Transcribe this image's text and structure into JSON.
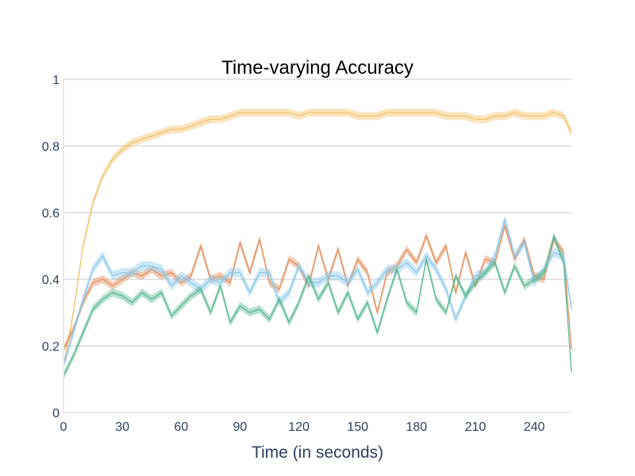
{
  "chart_data": {
    "type": "line",
    "title": "Time-varying Accuracy",
    "xlabel": "Time (in seconds)",
    "ylabel": "",
    "xlim": [
      0,
      259
    ],
    "ylim": [
      0,
      1
    ],
    "x_ticks": [
      0,
      30,
      60,
      90,
      120,
      150,
      180,
      210,
      240
    ],
    "x_tick_labels": [
      "0",
      "30",
      "60",
      "90",
      "120",
      "150",
      "180",
      "210",
      "240"
    ],
    "y_ticks": [
      0,
      0.2,
      0.4,
      0.6,
      0.8,
      1
    ],
    "y_tick_labels": [
      "0",
      "0.2",
      "0.4",
      "0.6",
      "0.8",
      "1"
    ],
    "grid": true,
    "legend": "none",
    "x": [
      0,
      5,
      10,
      15,
      20,
      25,
      30,
      35,
      40,
      45,
      50,
      55,
      60,
      65,
      70,
      75,
      80,
      85,
      90,
      95,
      100,
      105,
      110,
      115,
      120,
      125,
      130,
      135,
      140,
      145,
      150,
      155,
      160,
      165,
      170,
      175,
      180,
      185,
      190,
      195,
      200,
      205,
      210,
      215,
      220,
      225,
      230,
      235,
      240,
      245,
      250,
      255,
      259
    ],
    "series": [
      {
        "color": "#f2c46d",
        "band": 0.012,
        "values": [
          0.14,
          0.3,
          0.5,
          0.63,
          0.71,
          0.76,
          0.79,
          0.81,
          0.82,
          0.83,
          0.84,
          0.85,
          0.85,
          0.86,
          0.87,
          0.88,
          0.88,
          0.89,
          0.9,
          0.9,
          0.9,
          0.9,
          0.9,
          0.9,
          0.89,
          0.9,
          0.9,
          0.9,
          0.9,
          0.9,
          0.89,
          0.89,
          0.89,
          0.9,
          0.9,
          0.9,
          0.9,
          0.9,
          0.9,
          0.89,
          0.89,
          0.89,
          0.88,
          0.88,
          0.89,
          0.89,
          0.9,
          0.89,
          0.89,
          0.89,
          0.9,
          0.89,
          0.84
        ]
      },
      {
        "color": "#e2915f",
        "band": 0.012,
        "values": [
          0.19,
          0.25,
          0.33,
          0.39,
          0.4,
          0.38,
          0.4,
          0.42,
          0.41,
          0.43,
          0.41,
          0.42,
          0.39,
          0.41,
          0.5,
          0.4,
          0.41,
          0.39,
          0.51,
          0.42,
          0.52,
          0.39,
          0.37,
          0.46,
          0.44,
          0.38,
          0.5,
          0.4,
          0.49,
          0.38,
          0.46,
          0.42,
          0.3,
          0.42,
          0.44,
          0.49,
          0.45,
          0.53,
          0.45,
          0.5,
          0.36,
          0.48,
          0.38,
          0.46,
          0.45,
          0.56,
          0.46,
          0.52,
          0.41,
          0.4,
          0.52,
          0.48,
          0.19
        ]
      },
      {
        "color": "#8ec9ea",
        "band": 0.014,
        "values": [
          0.14,
          0.24,
          0.34,
          0.43,
          0.47,
          0.41,
          0.42,
          0.42,
          0.44,
          0.44,
          0.43,
          0.38,
          0.41,
          0.39,
          0.37,
          0.4,
          0.39,
          0.42,
          0.42,
          0.36,
          0.42,
          0.42,
          0.33,
          0.36,
          0.44,
          0.39,
          0.39,
          0.41,
          0.41,
          0.39,
          0.43,
          0.36,
          0.39,
          0.43,
          0.43,
          0.45,
          0.42,
          0.47,
          0.43,
          0.37,
          0.28,
          0.35,
          0.41,
          0.42,
          0.47,
          0.58,
          0.47,
          0.51,
          0.39,
          0.43,
          0.48,
          0.47,
          0.31
        ]
      },
      {
        "color": "#5ab891",
        "band": 0.012,
        "values": [
          0.11,
          0.17,
          0.24,
          0.31,
          0.34,
          0.36,
          0.35,
          0.33,
          0.36,
          0.34,
          0.36,
          0.29,
          0.32,
          0.35,
          0.37,
          0.3,
          0.38,
          0.27,
          0.32,
          0.3,
          0.31,
          0.28,
          0.34,
          0.27,
          0.33,
          0.41,
          0.34,
          0.39,
          0.3,
          0.36,
          0.28,
          0.33,
          0.24,
          0.34,
          0.43,
          0.33,
          0.3,
          0.46,
          0.34,
          0.3,
          0.41,
          0.35,
          0.39,
          0.42,
          0.45,
          0.36,
          0.44,
          0.38,
          0.4,
          0.42,
          0.53,
          0.45,
          0.12
        ]
      }
    ]
  }
}
